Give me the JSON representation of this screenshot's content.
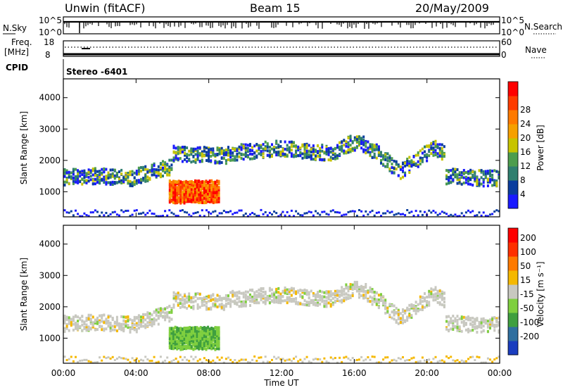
{
  "header": {
    "station": "Unwin (fitACF)",
    "beam": "Beam 15",
    "date": "20/May/2009"
  },
  "strips": {
    "nsky_label": "N.Sky",
    "nsky_ticks_left": [
      "10^5",
      "10^0"
    ],
    "nsky_ticks_right": [
      "10^5",
      "10^0"
    ],
    "nsearch_label": "N.Search",
    "freq_label": "Freq.",
    "freq_unit": "[MHz]",
    "freq_ticks_left": [
      "18",
      "8"
    ],
    "freq_ticks_right": [
      "60",
      "0"
    ],
    "nave_label": "Nave",
    "cpid_label": "CPID",
    "cpid_value": "Stereo -6401"
  },
  "chart_data": [
    {
      "type": "heatmap",
      "name": "power",
      "ylabel": "Slant Range [km]",
      "ylim": [
        200,
        4600
      ],
      "yticks": [
        1000,
        2000,
        3000,
        4000
      ],
      "xlabel": "Time UT",
      "xlim_hours": [
        0,
        24
      ],
      "xticks": [
        "00:00",
        "04:00",
        "08:00",
        "12:00",
        "16:00",
        "20:00",
        "00:00"
      ],
      "colorbar": {
        "label": "Power [dB]",
        "ticks": [
          4,
          8,
          12,
          16,
          20,
          24,
          28
        ],
        "colors": [
          "#1a1aff",
          "#0a3d9e",
          "#2f7f6f",
          "#4d9d4d",
          "#c7c400",
          "#f6a000",
          "#ff7a00",
          "#ff3c00",
          "#ff0000"
        ]
      }
    },
    {
      "type": "heatmap",
      "name": "velocity",
      "ylabel": "Slant Range [km]",
      "ylim": [
        200,
        4600
      ],
      "yticks": [
        1000,
        2000,
        3000,
        4000
      ],
      "xlabel": "Time UT",
      "xlim_hours": [
        0,
        24
      ],
      "xticks": [
        "00:00",
        "04:00",
        "08:00",
        "12:00",
        "16:00",
        "20:00",
        "00:00"
      ],
      "colorbar": {
        "label": "Velocity [m s⁻¹]",
        "ticks": [
          "200",
          "100",
          "50",
          "15",
          "-15",
          "-50",
          "-100",
          "-200"
        ],
        "colors": [
          "#1a3dbf",
          "#2f6f9f",
          "#3f9f3f",
          "#7fcf3f",
          "#c8c8c0",
          "#f5b800",
          "#ff7a00",
          "#ff3000",
          "#ff0000"
        ]
      }
    }
  ]
}
